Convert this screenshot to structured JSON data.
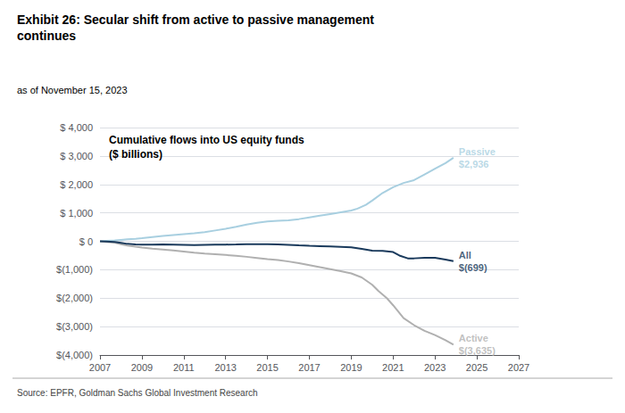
{
  "chart_data": {
    "type": "line",
    "title": "Exhibit 26: Secular shift from active to passive management\ncontinues",
    "subtitle": "as of November 15, 2023",
    "source": "Source: EPFR, Goldman Sachs Global Investment Research",
    "xlim": [
      2007,
      2027
    ],
    "ylim": [
      -4000,
      4000
    ],
    "xticks": [
      2007,
      2009,
      2011,
      2013,
      2015,
      2017,
      2019,
      2021,
      2023,
      2025,
      2027
    ],
    "yticks": [
      {
        "value": 4000,
        "label": "$ 4,000"
      },
      {
        "value": 3000,
        "label": "$ 3,000"
      },
      {
        "value": 2000,
        "label": "$ 2,000"
      },
      {
        "value": 1000,
        "label": "$ 1,000"
      },
      {
        "value": 0,
        "label": "$ 0"
      },
      {
        "value": -1000,
        "label": "$(1,000)"
      },
      {
        "value": -2000,
        "label": "$(2,000)"
      },
      {
        "value": -3000,
        "label": "$(3,000)"
      },
      {
        "value": -4000,
        "label": "$(4,000)"
      }
    ],
    "grid": "y",
    "annotations": [
      {
        "text": "Cumulative flows into US equity funds\n($ billions)"
      },
      {
        "text": "Passive\n$2,936",
        "x": 2023.88,
        "y": 2936,
        "color": "#a8cfe0"
      },
      {
        "text": "All\n$(699)",
        "x": 2023.88,
        "y": -699,
        "color": "#1a3a5c"
      },
      {
        "text": "Active\n$(3,635)",
        "x": 2023.88,
        "y": -3635,
        "color": "#b0b0b0"
      }
    ],
    "series": [
      {
        "name": "Passive",
        "color": "#a8cfe0",
        "x": [
          2007,
          2007.3,
          2007.7,
          2008.0,
          2008.3,
          2008.7,
          2009.0,
          2009.5,
          2010.0,
          2010.5,
          2011.0,
          2011.5,
          2012.0,
          2012.5,
          2013.0,
          2013.5,
          2014.0,
          2014.5,
          2015.0,
          2015.5,
          2016.0,
          2016.5,
          2017.0,
          2017.5,
          2018.0,
          2018.5,
          2019.0,
          2019.3,
          2019.7,
          2020.0,
          2020.5,
          2021.0,
          2021.5,
          2022.0,
          2022.5,
          2023.0,
          2023.5,
          2023.88
        ],
        "values": [
          0,
          15,
          30,
          50,
          70,
          90,
          110,
          150,
          190,
          220,
          250,
          280,
          320,
          380,
          440,
          510,
          590,
          650,
          700,
          720,
          740,
          780,
          840,
          900,
          960,
          1020,
          1080,
          1150,
          1280,
          1430,
          1700,
          1900,
          2050,
          2150,
          2350,
          2550,
          2750,
          2936
        ]
      },
      {
        "name": "Active",
        "color": "#b0b0b0",
        "x": [
          2007,
          2007.3,
          2007.7,
          2008.0,
          2008.3,
          2008.7,
          2009.0,
          2009.5,
          2010.0,
          2010.5,
          2011.0,
          2011.5,
          2012.0,
          2012.5,
          2013.0,
          2013.5,
          2014.0,
          2014.5,
          2015.0,
          2015.5,
          2016.0,
          2016.5,
          2017.0,
          2017.5,
          2018.0,
          2018.5,
          2019.0,
          2019.5,
          2020.0,
          2020.3,
          2020.7,
          2021.0,
          2021.5,
          2022.0,
          2022.5,
          2023.0,
          2023.5,
          2023.88
        ],
        "values": [
          0,
          -20,
          -50,
          -100,
          -150,
          -190,
          -220,
          -260,
          -290,
          -320,
          -360,
          -400,
          -430,
          -455,
          -480,
          -510,
          -545,
          -585,
          -625,
          -660,
          -710,
          -770,
          -840,
          -910,
          -980,
          -1050,
          -1130,
          -1270,
          -1530,
          -1750,
          -2000,
          -2250,
          -2700,
          -2950,
          -3150,
          -3300,
          -3480,
          -3635
        ]
      },
      {
        "name": "All",
        "color": "#1a3a5c",
        "x": [
          2007,
          2007.3,
          2007.7,
          2008.0,
          2008.3,
          2008.7,
          2009.0,
          2009.5,
          2010.0,
          2010.5,
          2011.0,
          2011.5,
          2012.0,
          2012.5,
          2013.0,
          2013.5,
          2014.0,
          2014.5,
          2015.0,
          2015.5,
          2016.0,
          2016.5,
          2017.0,
          2017.5,
          2018.0,
          2018.5,
          2019.0,
          2019.5,
          2020.0,
          2020.5,
          2021.0,
          2021.3,
          2021.7,
          2022.0,
          2022.5,
          2023.0,
          2023.5,
          2023.88
        ],
        "values": [
          0,
          -10,
          -25,
          -55,
          -90,
          -110,
          -115,
          -115,
          -110,
          -115,
          -125,
          -135,
          -125,
          -120,
          -115,
          -110,
          -100,
          -100,
          -100,
          -110,
          -125,
          -145,
          -160,
          -170,
          -180,
          -195,
          -215,
          -270,
          -330,
          -340,
          -380,
          -500,
          -600,
          -600,
          -580,
          -580,
          -640,
          -699
        ]
      }
    ]
  }
}
